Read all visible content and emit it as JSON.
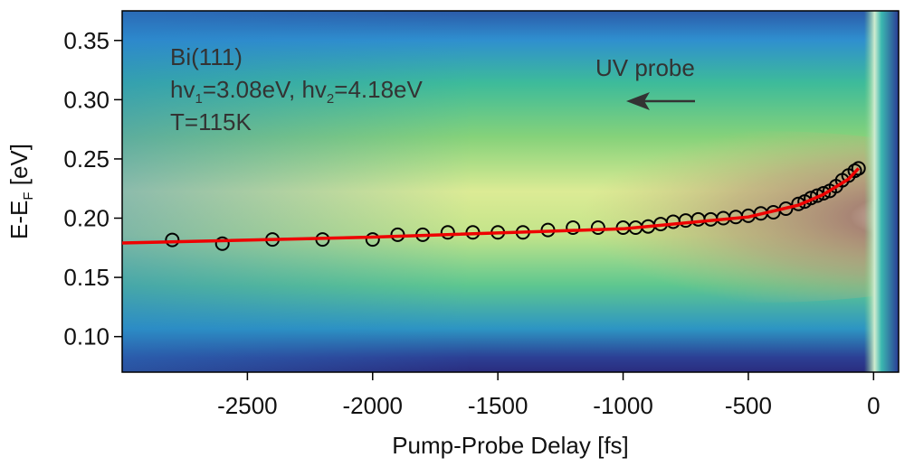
{
  "chart_data": {
    "type": "scatter",
    "xlabel": "Pump-Probe Delay [fs]",
    "ylabel": [
      "E-E",
      "F",
      " [eV]"
    ],
    "annotations": [
      [
        "Bi(111)"
      ],
      [
        "hv",
        "1",
        "=3.08eV, hv",
        "2",
        "=4.18eV"
      ],
      [
        "T=115K"
      ],
      [
        "UV probe"
      ]
    ],
    "xlim": [
      -3000,
      100
    ],
    "ylim": [
      0.07,
      0.375
    ],
    "xticks": [
      -2500,
      -2000,
      -1500,
      -1000,
      -500,
      0
    ],
    "yticks": [
      {
        "value": 0.1,
        "label": "0.10"
      },
      0.15,
      {
        "value": 0.2,
        "label": "0.20"
      },
      0.25,
      {
        "value": 0.3,
        "label": "0.30"
      },
      0.35
    ],
    "series": [
      {
        "type": "scatter",
        "color": "#000000",
        "x": [
          -2800,
          -2600,
          -2400,
          -2200,
          -2000,
          -1900,
          -1800,
          -1700,
          -1600,
          -1500,
          -1400,
          -1300,
          -1200,
          -1100,
          -1000,
          -950,
          -900,
          -850,
          -800,
          -750,
          -700,
          -650,
          -600,
          -550,
          -500,
          -450,
          -400,
          -350,
          -300,
          -275,
          -250,
          -225,
          -200,
          -175,
          -150,
          -125,
          -100,
          -75,
          -60
        ],
        "values": [
          0.1816,
          0.1785,
          0.182,
          0.182,
          0.182,
          0.186,
          0.186,
          0.188,
          0.188,
          0.188,
          0.188,
          0.19,
          0.192,
          0.192,
          0.192,
          0.192,
          0.193,
          0.195,
          0.197,
          0.198,
          0.199,
          0.199,
          0.2,
          0.201,
          0.202,
          0.204,
          0.205,
          0.208,
          0.212,
          0.214,
          0.217,
          0.219,
          0.221,
          0.223,
          0.227,
          0.232,
          0.236,
          0.24,
          0.242
        ]
      },
      {
        "type": "line",
        "color": "#ee0000",
        "x": [
          -3000,
          -2000,
          -1000,
          -500,
          -300,
          -200,
          -100,
          -60
        ],
        "values": [
          0.179,
          0.184,
          0.191,
          0.201,
          0.211,
          0.22,
          0.233,
          0.242
        ]
      }
    ]
  }
}
